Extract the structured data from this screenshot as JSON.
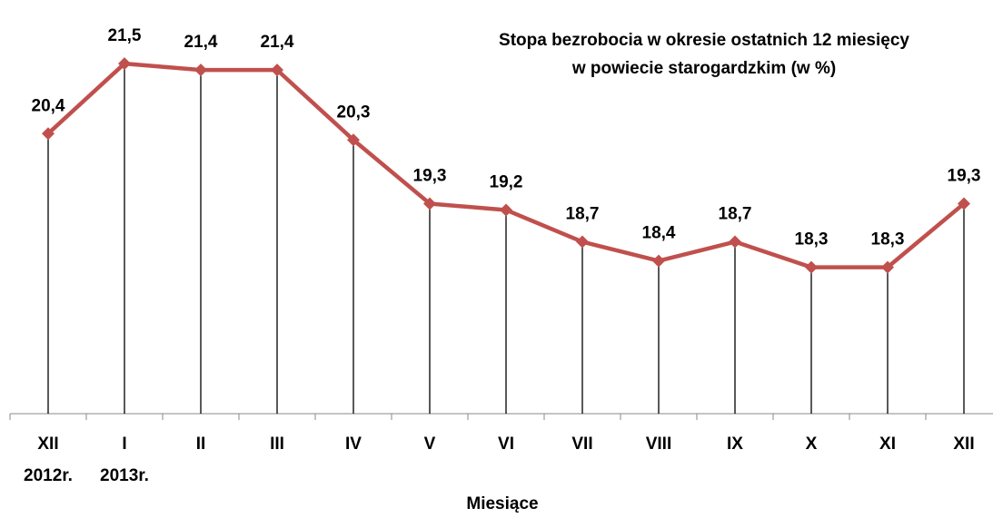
{
  "chart_data": {
    "type": "line",
    "title": [
      "Stopa bezrobocia w okresie  ostatnich 12 miesięcy",
      "w powiecie starogardzkim (w %)"
    ],
    "x_label": "Miesiące",
    "categories": [
      "XII",
      "I",
      "II",
      "III",
      "IV",
      "V",
      "VI",
      "VII",
      "VIII",
      "IX",
      "X",
      "XI",
      "XII"
    ],
    "category_years": [
      "2012r.",
      "2013r.",
      null,
      null,
      null,
      null,
      null,
      null,
      null,
      null,
      null,
      null,
      null
    ],
    "series": [
      {
        "name": "Stopa bezrobocia",
        "color": "#c0504d",
        "values": [
          20.4,
          21.5,
          21.4,
          21.4,
          20.3,
          19.3,
          19.2,
          18.7,
          18.4,
          18.7,
          18.3,
          18.3,
          19.3
        ],
        "value_labels": [
          "20,4",
          "21,5",
          "21,4",
          "21,4",
          "20,3",
          "19,3",
          "19,2",
          "18,7",
          "18,4",
          "18,7",
          "18,3",
          "18,3",
          "19,3"
        ]
      }
    ],
    "ylim": [
      16,
      22
    ],
    "drop_lines": true
  }
}
